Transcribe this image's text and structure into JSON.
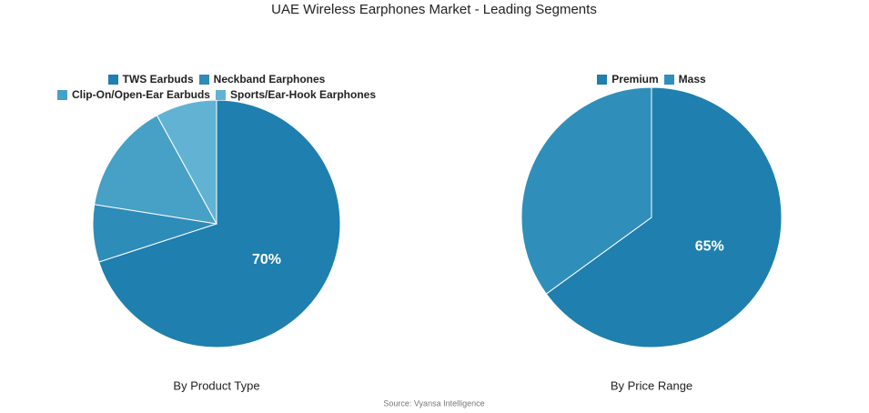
{
  "title": "UAE Wireless Earphones Market - Leading Segments",
  "source": "Source: Vyansa Intelligence",
  "chart_data": [
    {
      "type": "pie",
      "title": "By Product Type",
      "categories": [
        "TWS Earbuds",
        "Neckband Earphones",
        "Clip-On/Open-Ear Earbuds",
        "Sports/Ear-Hook Earphones"
      ],
      "values": [
        70,
        7.5,
        14.5,
        8
      ],
      "value_labels": [
        "70%",
        null,
        null,
        null
      ],
      "colors": [
        "#1f7fae",
        "#2e8cb8",
        "#47a0c6",
        "#62b3d3"
      ]
    },
    {
      "type": "pie",
      "title": "By Price Range",
      "categories": [
        "Premium",
        "Mass"
      ],
      "values": [
        65,
        35
      ],
      "value_labels": [
        "65%",
        null
      ],
      "colors": [
        "#1f7fae",
        "#2f8fba"
      ]
    }
  ]
}
